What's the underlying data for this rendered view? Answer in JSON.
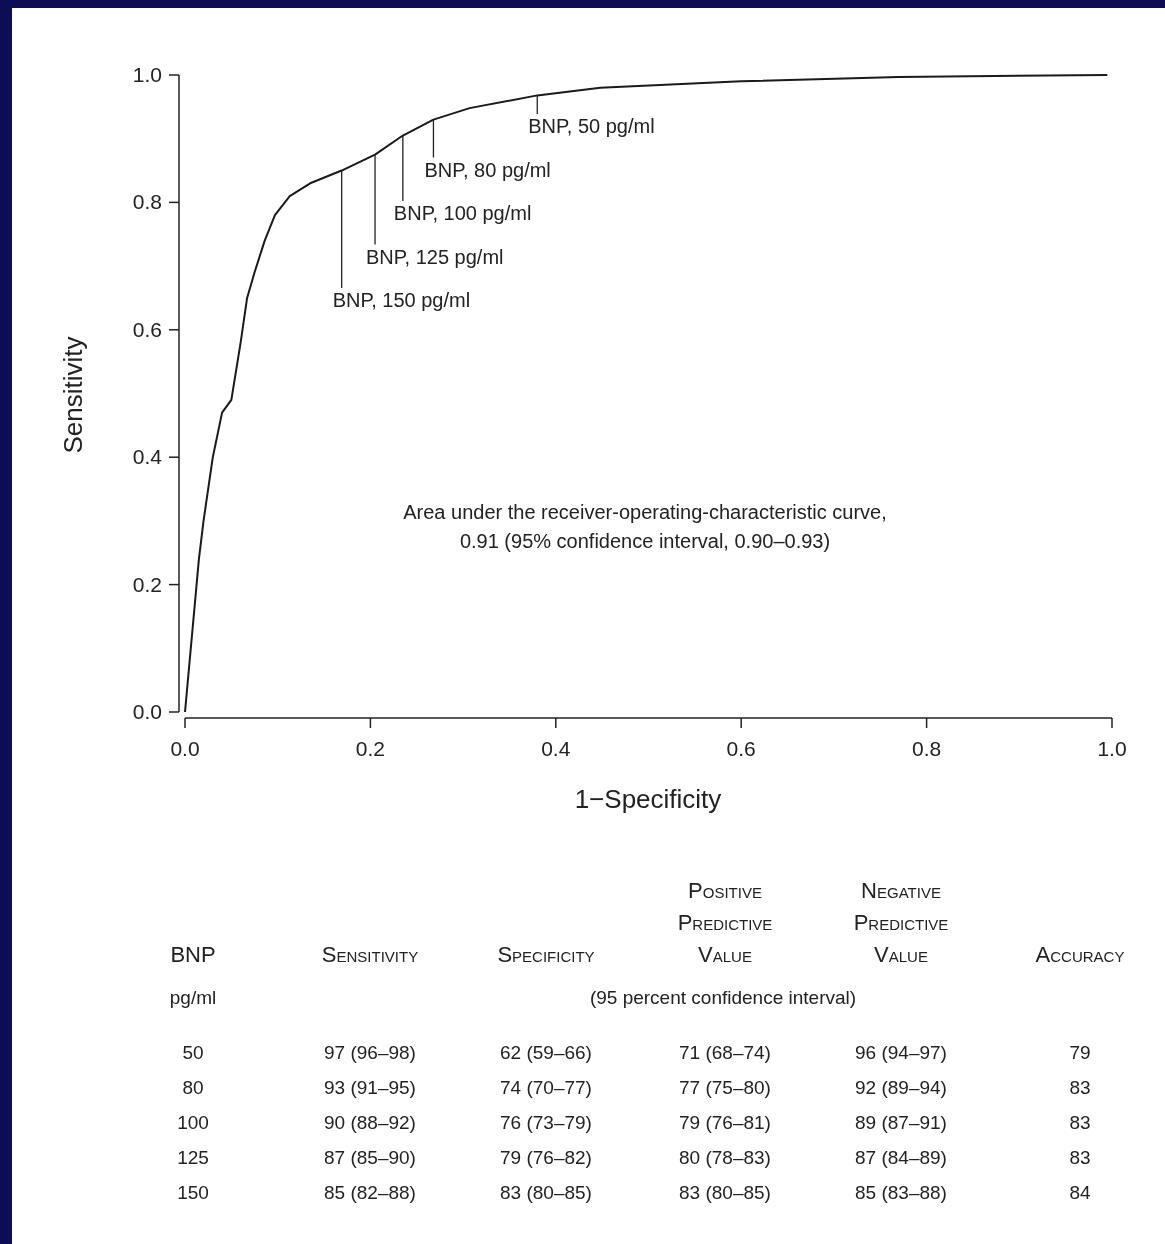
{
  "chart_data": {
    "type": "line",
    "xlabel": "1−Specificity",
    "ylabel": "Sensitivity",
    "xlim": [
      0,
      1
    ],
    "ylim": [
      0,
      1
    ],
    "xticks": [
      {
        "value": 0,
        "label": "0.0"
      },
      {
        "value": 0.2,
        "label": "0.2"
      },
      {
        "value": 0.4,
        "label": "0.4"
      },
      {
        "value": 0.6,
        "label": "0.6"
      },
      {
        "value": 0.8,
        "label": "0.8"
      },
      {
        "value": 1,
        "label": "1.0"
      }
    ],
    "yticks": [
      {
        "value": 0,
        "label": "0.0"
      },
      {
        "value": 0.2,
        "label": "0.2"
      },
      {
        "value": 0.4,
        "label": "0.4"
      },
      {
        "value": 0.6,
        "label": "0.6"
      },
      {
        "value": 0.8,
        "label": "0.8"
      },
      {
        "value": 1,
        "label": "1.0"
      }
    ],
    "grid": false,
    "marker": "none",
    "line_style": "solid",
    "series": [
      {
        "color": "#1a1a1a",
        "x": [
          0.0,
          0.015,
          0.02,
          0.03,
          0.04,
          0.05,
          0.06,
          0.067,
          0.075,
          0.086,
          0.097,
          0.113,
          0.135,
          0.169,
          0.205,
          0.235,
          0.268,
          0.307,
          0.38,
          0.448,
          0.6,
          0.77,
          0.995
        ],
        "values": [
          0.0,
          0.24,
          0.3,
          0.4,
          0.47,
          0.49,
          0.58,
          0.65,
          0.69,
          0.74,
          0.78,
          0.81,
          0.83,
          0.85,
          0.875,
          0.905,
          0.93,
          0.948,
          0.968,
          0.98,
          0.99,
          0.997,
          1.0
        ]
      }
    ],
    "annotations": [
      {
        "text": "BNP, 50 pg/ml",
        "x": 0.38,
        "y": 0.968
      },
      {
        "text": "BNP, 80 pg/ml",
        "x": 0.268,
        "y": 0.93
      },
      {
        "text": "BNP, 100 pg/ml",
        "x": 0.235,
        "y": 0.905
      },
      {
        "text": "BNP, 125 pg/ml",
        "x": 0.205,
        "y": 0.875
      },
      {
        "text": "BNP, 150 pg/ml",
        "x": 0.169,
        "y": 0.85
      },
      "Area under the receiver-operating-characteristic curve,\n0.91 (95% confidence interval, 0.90–0.93)",
      "BNP",
      "Sensitivity",
      "Specificity",
      "Positive\nPredictive\nValue",
      "Negative\nPredictive\nValue",
      "Accuracy",
      "pg/ml",
      "(95 percent confidence interval)",
      "50",
      "97 (96–98)",
      "62 (59–66)",
      "71 (68–74)",
      "96 (94–97)",
      "79",
      "80",
      "93 (91–95)",
      "74 (70–77)",
      "77 (75–80)",
      "92 (89–94)",
      "83",
      "100",
      "90 (88–92)",
      "76 (73–79)",
      "79 (76–81)",
      "89 (87–91)",
      "83",
      "125",
      "87 (85–90)",
      "79 (76–82)",
      "80 (78–83)",
      "87 (84–89)",
      "83",
      "150",
      "85 (82–88)",
      "83 (80–85)",
      "83 (80–85)",
      "85 (83–88)",
      "84"
    ]
  }
}
